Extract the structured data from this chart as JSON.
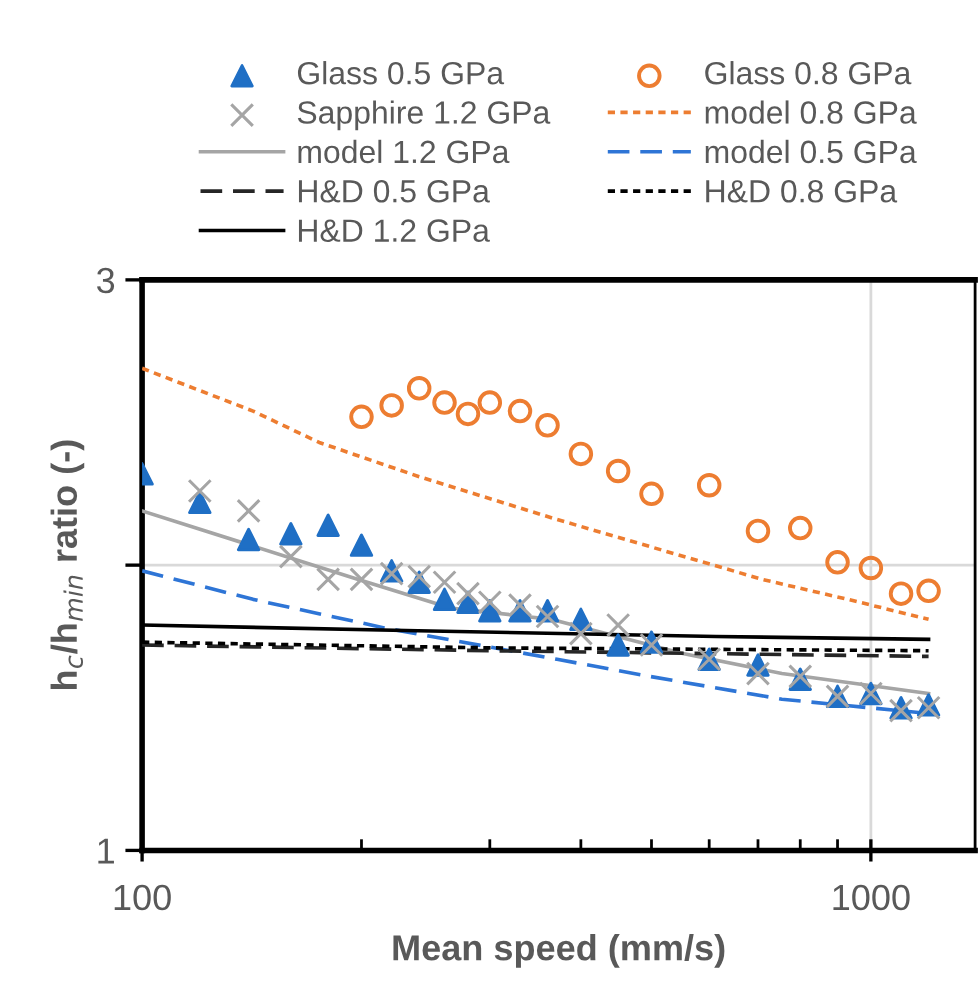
{
  "chart_data": {
    "type": "scatter",
    "xlabel": "Mean speed (mm/s)",
    "ylabel": "h$_{c}$/h$_{min}$ ratio (-)",
    "log": "x",
    "xlim": [
      100,
      1390
    ],
    "ylim": [
      1,
      3
    ],
    "xticks": [
      100,
      1000
    ],
    "yticks": [
      1,
      {
        "value": 2,
        "label": null
      },
      3
    ],
    "grid": true,
    "legend": "top",
    "series": [
      {
        "name": "Glass 0.5 GPa",
        "marker": "triangle",
        "color": "#1f6fc5",
        "x": [
          100,
          120,
          140,
          160,
          180,
          200,
          220,
          240,
          260,
          280,
          300,
          330,
          360,
          400,
          450,
          500,
          600,
          700,
          800,
          900,
          1000,
          1100,
          1200
        ],
        "values": [
          2.32,
          2.22,
          2.09,
          2.11,
          2.14,
          2.07,
          1.98,
          1.94,
          1.88,
          1.87,
          1.84,
          1.84,
          1.84,
          1.81,
          1.72,
          1.73,
          1.67,
          1.65,
          1.6,
          1.54,
          1.55,
          1.5,
          1.51
        ]
      },
      {
        "name": "Glass 0.8 GPa",
        "marker": "circle",
        "color": "#ed7d31",
        "x": [
          200,
          220,
          240,
          260,
          280,
          300,
          330,
          360,
          400,
          450,
          500,
          600,
          700,
          800,
          900,
          1000,
          1100,
          1200
        ],
        "values": [
          2.52,
          2.56,
          2.62,
          2.57,
          2.53,
          2.57,
          2.54,
          2.49,
          2.39,
          2.33,
          2.25,
          2.28,
          2.12,
          2.13,
          2.01,
          1.99,
          1.9,
          1.91
        ]
      },
      {
        "name": "Sapphire 1.2 GPa",
        "marker": "cross",
        "color": "#a5a5a5",
        "x": [
          120,
          140,
          160,
          180,
          200,
          220,
          240,
          260,
          280,
          300,
          330,
          360,
          400,
          450,
          500,
          600,
          700,
          800,
          900,
          1000,
          1100,
          1200
        ],
        "values": [
          2.26,
          2.19,
          2.03,
          1.95,
          1.95,
          1.97,
          1.96,
          1.94,
          1.9,
          1.87,
          1.86,
          1.82,
          1.76,
          1.79,
          1.72,
          1.67,
          1.62,
          1.61,
          1.54,
          1.55,
          1.49,
          1.5
        ]
      },
      {
        "name": "model 0.8 GPa",
        "type": "line",
        "line_style": "dotted",
        "color": "#ed7d31",
        "x": [
          100,
          142,
          175,
          240,
          371,
          710,
          930,
          1200
        ],
        "values": [
          2.69,
          2.54,
          2.43,
          2.31,
          2.16,
          1.95,
          1.88,
          1.81
        ]
      },
      {
        "name": "model 1.2 GPa",
        "type": "line",
        "line_style": "solid",
        "color": "#a5a5a5",
        "x": [
          100,
          198,
          265,
          364,
          552,
          755,
          1200
        ],
        "values": [
          2.19,
          1.95,
          1.85,
          1.81,
          1.69,
          1.62,
          1.55
        ]
      },
      {
        "name": "model 0.5 GPa",
        "type": "line",
        "line_style": "dashed",
        "color": "#2e75d6",
        "x": [
          100,
          142,
          215,
          371,
          497,
          755,
          1200
        ],
        "values": [
          1.98,
          1.88,
          1.78,
          1.67,
          1.61,
          1.53,
          1.48
        ]
      },
      {
        "name": "H&D 0.5 GPa",
        "type": "line",
        "line_style": "dashed",
        "color": "#262626",
        "x": [
          100,
          300,
          1200
        ],
        "values": [
          1.72,
          1.7,
          1.68
        ]
      },
      {
        "name": "H&D 0.8 GPa",
        "type": "line",
        "line_style": "dotted",
        "color": "#000000",
        "x": [
          100,
          300,
          1200
        ],
        "values": [
          1.73,
          1.71,
          1.7
        ]
      },
      {
        "name": "H&D 1.2 GPa",
        "type": "line",
        "line_style": "solid",
        "color": "#000000",
        "x": [
          100,
          239,
          613,
          1200
        ],
        "values": [
          1.79,
          1.77,
          1.75,
          1.74
        ]
      }
    ]
  }
}
